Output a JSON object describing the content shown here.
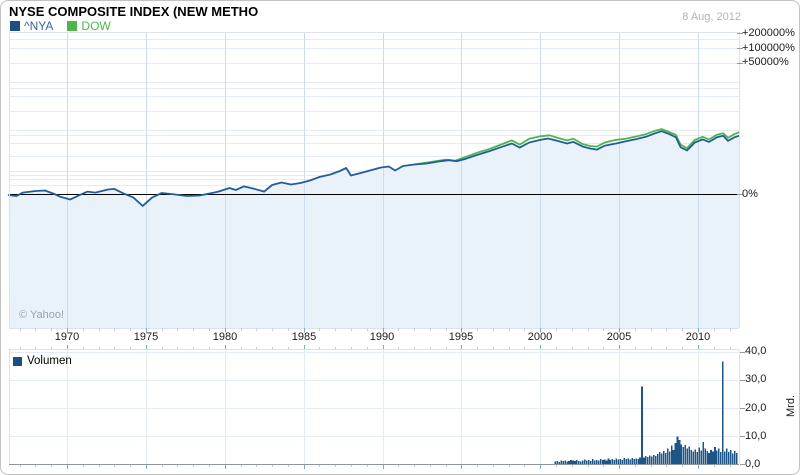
{
  "header": {
    "title": "NYSE COMPOSITE INDEX (NEW METHO",
    "date": "8 Aug, 2012"
  },
  "footer": {
    "watermark": "© Yahoo!"
  },
  "colors": {
    "nya_line": "#235d99",
    "nya_swatch": "#1c4f80",
    "nya_text": "#33679e",
    "dow_line": "#4cb748",
    "dow_text": "#4cb748",
    "area_fill": "#e9f1f9",
    "volume_bar": "#1d5586",
    "zero_line": "#000000",
    "grid_h": "#e4ebf4",
    "grid_v": "#ccdcee",
    "frame_line": "#dde3ec",
    "tick_major": "#7da7cf",
    "tick_minor": "#b9cfe6",
    "axis_dash": "#999999"
  },
  "chart_data": [
    {
      "type": "area",
      "title": "Price change since start, log percent scale",
      "legend_position": "top-left",
      "x_axis": {
        "range_years": [
          1966.3,
          2012.6
        ],
        "tick_years": [
          1970,
          1975,
          1980,
          1985,
          1990,
          1995,
          2000,
          2005,
          2010
        ],
        "tick_labels": [
          "1970",
          "1975",
          "1980",
          "1985",
          "1990",
          "1995",
          "2000",
          "2005",
          "2010"
        ],
        "minor_tick_every_years": 1
      },
      "y_axis": {
        "scale": "log-percent-change",
        "tick_labels": [
          "+200000%",
          "+100000%",
          "+50000%",
          "0%"
        ],
        "tick_values": [
          200000,
          100000,
          50000,
          0
        ],
        "gridline_values": [
          200000,
          150000,
          100000,
          50000,
          20000,
          15000,
          10000,
          5000,
          2000,
          1500,
          1000,
          500,
          200,
          150,
          100,
          50
        ]
      },
      "series": [
        {
          "name": "^NYA",
          "points": [
            [
              1966.3,
              -5
            ],
            [
              1966.8,
              -9
            ],
            [
              1967.2,
              7
            ],
            [
              1968.0,
              15
            ],
            [
              1968.6,
              18
            ],
            [
              1969.2,
              0
            ],
            [
              1969.6,
              -13
            ],
            [
              1970.2,
              -23
            ],
            [
              1970.8,
              -5
            ],
            [
              1971.3,
              12
            ],
            [
              1971.8,
              7
            ],
            [
              1972.6,
              24
            ],
            [
              1973.0,
              27
            ],
            [
              1973.6,
              2
            ],
            [
              1974.2,
              -15
            ],
            [
              1974.8,
              -43
            ],
            [
              1975.4,
              -15
            ],
            [
              1976.0,
              5
            ],
            [
              1976.8,
              -2
            ],
            [
              1977.6,
              -9
            ],
            [
              1978.4,
              -7
            ],
            [
              1979.0,
              2
            ],
            [
              1979.6,
              12
            ],
            [
              1980.3,
              33
            ],
            [
              1980.7,
              21
            ],
            [
              1981.2,
              43
            ],
            [
              1981.8,
              30
            ],
            [
              1982.5,
              12
            ],
            [
              1983.0,
              53
            ],
            [
              1983.6,
              72
            ],
            [
              1984.2,
              57
            ],
            [
              1984.8,
              68
            ],
            [
              1985.4,
              89
            ],
            [
              1986.0,
              123
            ],
            [
              1986.7,
              152
            ],
            [
              1987.3,
              197
            ],
            [
              1987.7,
              242
            ],
            [
              1988.0,
              140
            ],
            [
              1988.5,
              164
            ],
            [
              1989.2,
              204
            ],
            [
              1989.9,
              250
            ],
            [
              1990.4,
              267
            ],
            [
              1990.8,
              204
            ],
            [
              1991.3,
              276
            ],
            [
              1992.0,
              303
            ],
            [
              1992.8,
              322
            ],
            [
              1993.5,
              362
            ],
            [
              1994.2,
              395
            ],
            [
              1994.7,
              372
            ],
            [
              1995.3,
              430
            ],
            [
              1996.0,
              534
            ],
            [
              1996.8,
              664
            ],
            [
              1997.5,
              815
            ],
            [
              1998.2,
              987
            ],
            [
              1998.7,
              795
            ],
            [
              1999.3,
              1041
            ],
            [
              2000.0,
              1190
            ],
            [
              2000.5,
              1282
            ],
            [
              2001.1,
              1130
            ],
            [
              2001.7,
              987
            ],
            [
              2002.1,
              1072
            ],
            [
              2002.7,
              839
            ],
            [
              2003.2,
              756
            ],
            [
              2003.6,
              717
            ],
            [
              2004.1,
              886
            ],
            [
              2004.8,
              987
            ],
            [
              2005.4,
              1100
            ],
            [
              2006.0,
              1222
            ],
            [
              2006.7,
              1396
            ],
            [
              2007.3,
              1673
            ],
            [
              2007.7,
              1848
            ],
            [
              2008.2,
              1590
            ],
            [
              2008.6,
              1360
            ],
            [
              2008.9,
              815
            ],
            [
              2009.3,
              683
            ],
            [
              2009.8,
              1041
            ],
            [
              2010.3,
              1222
            ],
            [
              2010.7,
              1072
            ],
            [
              2011.2,
              1360
            ],
            [
              2011.6,
              1464
            ],
            [
              2011.9,
              1130
            ],
            [
              2012.3,
              1360
            ],
            [
              2012.6,
              1464
            ]
          ]
        },
        {
          "name": "DOW",
          "points": [
            [
              1992.0,
              303
            ],
            [
              1993.0,
              350
            ],
            [
              1994.0,
              405
            ],
            [
              1994.6,
              382
            ],
            [
              1995.2,
              467
            ],
            [
              1996.0,
              605
            ],
            [
              1996.8,
              746
            ],
            [
              1997.5,
              934
            ],
            [
              1998.2,
              1158
            ],
            [
              1998.7,
              934
            ],
            [
              1999.3,
              1257
            ],
            [
              2000.0,
              1430
            ],
            [
              2000.6,
              1505
            ],
            [
              2001.1,
              1320
            ],
            [
              2001.7,
              1158
            ],
            [
              2002.1,
              1257
            ],
            [
              2002.7,
              958
            ],
            [
              2003.2,
              864
            ],
            [
              2003.6,
              839
            ],
            [
              2004.1,
              1041
            ],
            [
              2004.8,
              1190
            ],
            [
              2005.4,
              1257
            ],
            [
              2006.0,
              1396
            ],
            [
              2006.7,
              1590
            ],
            [
              2007.3,
              1896
            ],
            [
              2007.7,
              2046
            ],
            [
              2008.2,
              1758
            ],
            [
              2008.6,
              1543
            ],
            [
              2008.9,
              934
            ],
            [
              2009.3,
              770
            ],
            [
              2009.8,
              1190
            ],
            [
              2010.3,
              1396
            ],
            [
              2010.7,
              1222
            ],
            [
              2011.2,
              1543
            ],
            [
              2011.6,
              1673
            ],
            [
              2011.9,
              1320
            ],
            [
              2012.3,
              1590
            ],
            [
              2012.6,
              1758
            ]
          ]
        }
      ]
    },
    {
      "type": "bar",
      "title": "Volume",
      "y_axis": {
        "tick_labels": [
          "40,0",
          "30,0",
          "20,0",
          "10,0",
          "0,0"
        ],
        "tick_values": [
          40,
          30,
          20,
          10,
          0
        ],
        "gridline_values": [
          40,
          30,
          20,
          10
        ],
        "unit": "Mrd.",
        "max": 40
      },
      "series": [
        {
          "name": "Volumen",
          "start_year": 2000.95,
          "step_years": 0.125,
          "values": [
            0.9,
            1.1,
            0.8,
            1.2,
            1.0,
            1.3,
            0.9,
            1.1,
            1.4,
            1.2,
            1.0,
            1.5,
            1.1,
            0.9,
            1.3,
            1.6,
            1.2,
            1.4,
            1.1,
            1.7,
            1.3,
            1.5,
            1.2,
            1.8,
            1.4,
            1.6,
            1.3,
            1.9,
            1.5,
            1.7,
            1.4,
            2.0,
            1.6,
            1.8,
            1.5,
            2.1,
            1.7,
            1.9,
            1.6,
            2.2,
            1.8,
            2.0,
            1.7,
            2.3,
            27.5,
            2.4,
            2.8,
            2.5,
            3.0,
            2.7,
            3.2,
            2.9,
            3.5,
            4.2,
            3.8,
            4.6,
            4.0,
            5.5,
            4.5,
            6.5,
            5.0,
            7.5,
            9.8,
            8.5,
            7.0,
            6.0,
            6.8,
            5.5,
            6.2,
            5.0,
            4.5,
            5.2,
            4.2,
            5.8,
            4.8,
            7.8,
            5.5,
            4.6,
            4.0,
            5.0,
            4.4,
            6.0,
            4.8,
            5.6,
            4.2,
            36.5,
            4.5,
            5.5,
            4.2,
            5.0,
            3.8,
            4.6,
            4.0
          ]
        }
      ]
    }
  ]
}
